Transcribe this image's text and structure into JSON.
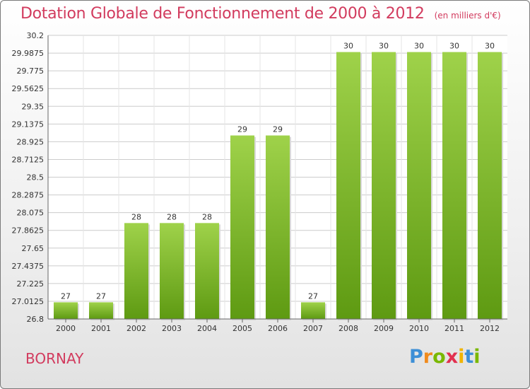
{
  "title": "Dotation Globale de Fonctionnement de 2000 à 2012",
  "unit": "(en milliers d'€)",
  "commune": "BORNAY",
  "logo": {
    "letters": [
      "P",
      "r",
      "o",
      "x",
      "i",
      "t",
      "i"
    ],
    "colors": [
      "#3d8fd6",
      "#f08b1d",
      "#7ab800",
      "#e2304f",
      "#f0b400",
      "#3d8fd6",
      "#7ab800"
    ]
  },
  "chart_data": {
    "type": "bar",
    "categories": [
      "2000",
      "2001",
      "2002",
      "2003",
      "2004",
      "2005",
      "2006",
      "2007",
      "2008",
      "2009",
      "2010",
      "2011",
      "2012"
    ],
    "values": [
      27,
      27,
      28,
      28,
      28,
      29,
      29,
      27,
      30,
      30,
      30,
      30,
      30
    ],
    "plot_values": [
      27.0,
      27.0,
      27.95,
      27.95,
      27.95,
      29.0,
      29.0,
      27.0,
      30.0,
      30.0,
      30.0,
      30.0,
      30.0
    ],
    "labels": [
      "27",
      "27",
      "28",
      "28",
      "28",
      "29",
      "29",
      "27",
      "30",
      "30",
      "30",
      "30",
      "30"
    ],
    "yticks": [
      "26.8",
      "27.0125",
      "27.225",
      "27.4375",
      "27.65",
      "27.8625",
      "28.075",
      "28.2875",
      "28.5",
      "28.7125",
      "28.925",
      "29.1375",
      "29.35",
      "29.5625",
      "29.775",
      "29.9875",
      "30.2"
    ],
    "ylim": [
      26.8,
      30.2
    ],
    "grid": true,
    "bar_color": "#7fbf2a"
  }
}
